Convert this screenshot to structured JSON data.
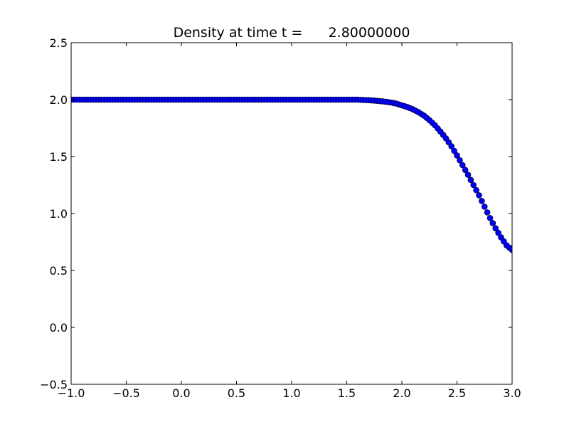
{
  "chart_data": {
    "type": "scatter",
    "title": "Density at time t =      2.80000000",
    "xlabel": "",
    "ylabel": "",
    "xlim": [
      -1.0,
      3.0
    ],
    "ylim": [
      -0.5,
      2.5
    ],
    "xticks": [
      -1.0,
      -0.5,
      0.0,
      0.5,
      1.0,
      1.5,
      2.0,
      2.5,
      3.0
    ],
    "xtick_labels": [
      "−1.0",
      "−0.5",
      "0.0",
      "0.5",
      "1.0",
      "1.5",
      "2.0",
      "2.5",
      "3.0"
    ],
    "yticks": [
      -0.5,
      0.0,
      0.5,
      1.0,
      1.5,
      2.0,
      2.5
    ],
    "ytick_labels": [
      "−0.5",
      "0.0",
      "0.5",
      "1.0",
      "1.5",
      "2.0",
      "2.5"
    ],
    "grid": false,
    "series": [
      {
        "marker_color": "#0000ff",
        "marker_edge_color": "#000000",
        "x": [
          -1.0,
          -0.95,
          -0.9,
          -0.85,
          -0.8,
          -0.75,
          -0.7,
          -0.65,
          -0.6,
          -0.55,
          -0.5,
          -0.45,
          -0.4,
          -0.35,
          -0.3,
          -0.25,
          -0.2,
          -0.15,
          -0.1,
          -0.05,
          0.0,
          0.05,
          0.1,
          0.15,
          0.2,
          0.25,
          0.3,
          0.35,
          0.4,
          0.45,
          0.5,
          0.55,
          0.6,
          0.65,
          0.7,
          0.75,
          0.8,
          0.85,
          0.9,
          0.95,
          1.0,
          1.05,
          1.1,
          1.15,
          1.2,
          1.25,
          1.3,
          1.35,
          1.4,
          1.45,
          1.5,
          1.55,
          1.6,
          1.65,
          1.7,
          1.75,
          1.8,
          1.85,
          1.9,
          1.95,
          2.0,
          2.05,
          2.1,
          2.15,
          2.2,
          2.25,
          2.3,
          2.35,
          2.4,
          2.45,
          2.5,
          2.55,
          2.6,
          2.65,
          2.7,
          2.75,
          2.8,
          2.85,
          2.9,
          2.95,
          3.0
        ],
        "y": [
          2.0,
          2.0,
          2.0,
          2.0,
          2.0,
          2.0,
          2.0,
          2.0,
          2.0,
          2.0,
          2.0,
          2.0,
          2.0,
          2.0,
          2.0,
          2.0,
          2.0,
          2.0,
          2.0,
          2.0,
          2.0,
          2.0,
          2.0,
          2.0,
          2.0,
          2.0,
          2.0,
          2.0,
          2.0,
          2.0,
          2.0,
          2.0,
          2.0,
          2.0,
          2.0,
          2.0,
          2.0,
          2.0,
          2.0,
          2.0,
          2.0,
          2.0,
          2.0,
          2.0,
          2.0,
          2.0,
          2.0,
          2.0,
          2.0,
          2.0,
          2.0,
          2.0,
          2.0,
          1.997,
          1.995,
          1.992,
          1.987,
          1.982,
          1.975,
          1.965,
          1.95,
          1.935,
          1.915,
          1.89,
          1.86,
          1.82,
          1.775,
          1.72,
          1.66,
          1.59,
          1.51,
          1.425,
          1.34,
          1.25,
          1.16,
          1.06,
          0.96,
          0.87,
          0.79,
          0.72,
          0.68
        ]
      }
    ]
  }
}
